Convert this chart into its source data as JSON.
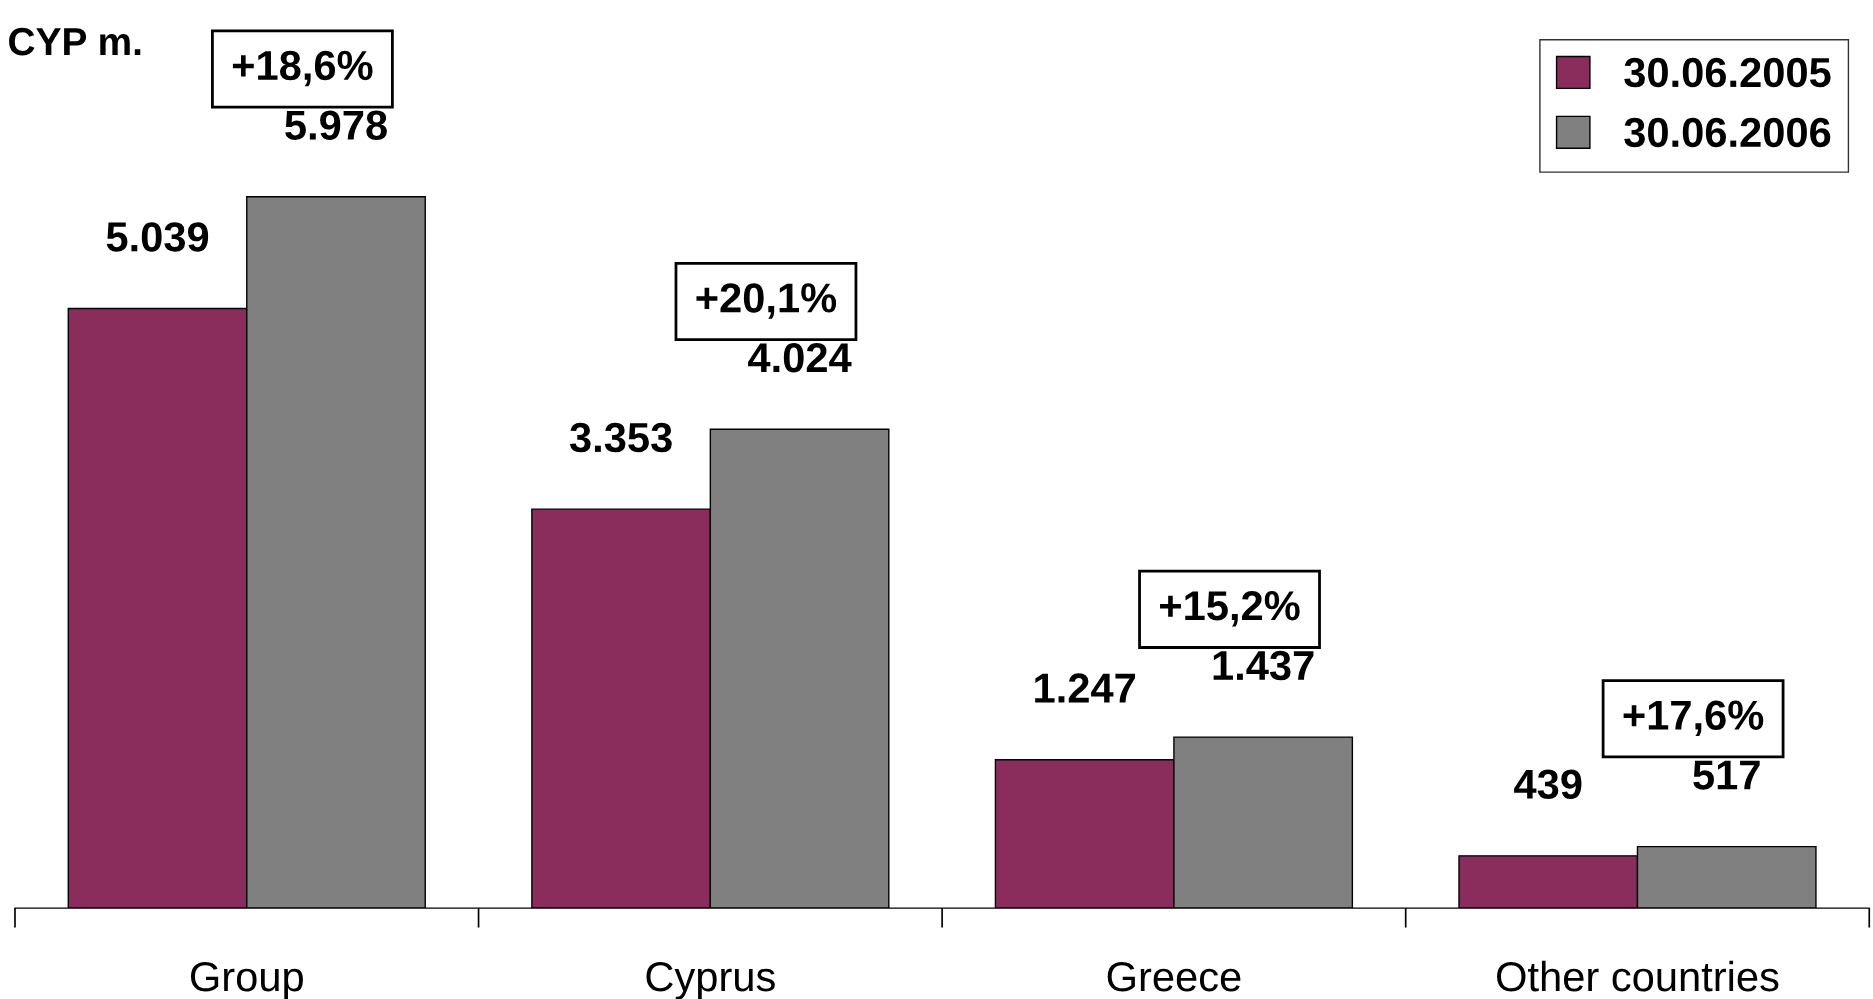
{
  "chart_data": {
    "type": "bar",
    "title": "CYP m.",
    "categories": [
      "Group",
      "Cyprus",
      "Greece",
      "Other countries"
    ],
    "series": [
      {
        "name": "30.06.2005",
        "color": "#8b2d5c",
        "values": [
          5039,
          3353,
          1247,
          439
        ],
        "value_labels": [
          "5.039",
          "3.353",
          "1.247",
          "439"
        ]
      },
      {
        "name": "30.06.2006",
        "color": "#808080",
        "values": [
          5978,
          4024,
          1437,
          517
        ],
        "value_labels": [
          "5.978",
          "4.024",
          "1.437",
          "517"
        ]
      }
    ],
    "annotations": [
      "+18,6%",
      "+20,1%",
      "+15,2%",
      "+17,6%"
    ],
    "legend": "top right",
    "grid": false
  }
}
